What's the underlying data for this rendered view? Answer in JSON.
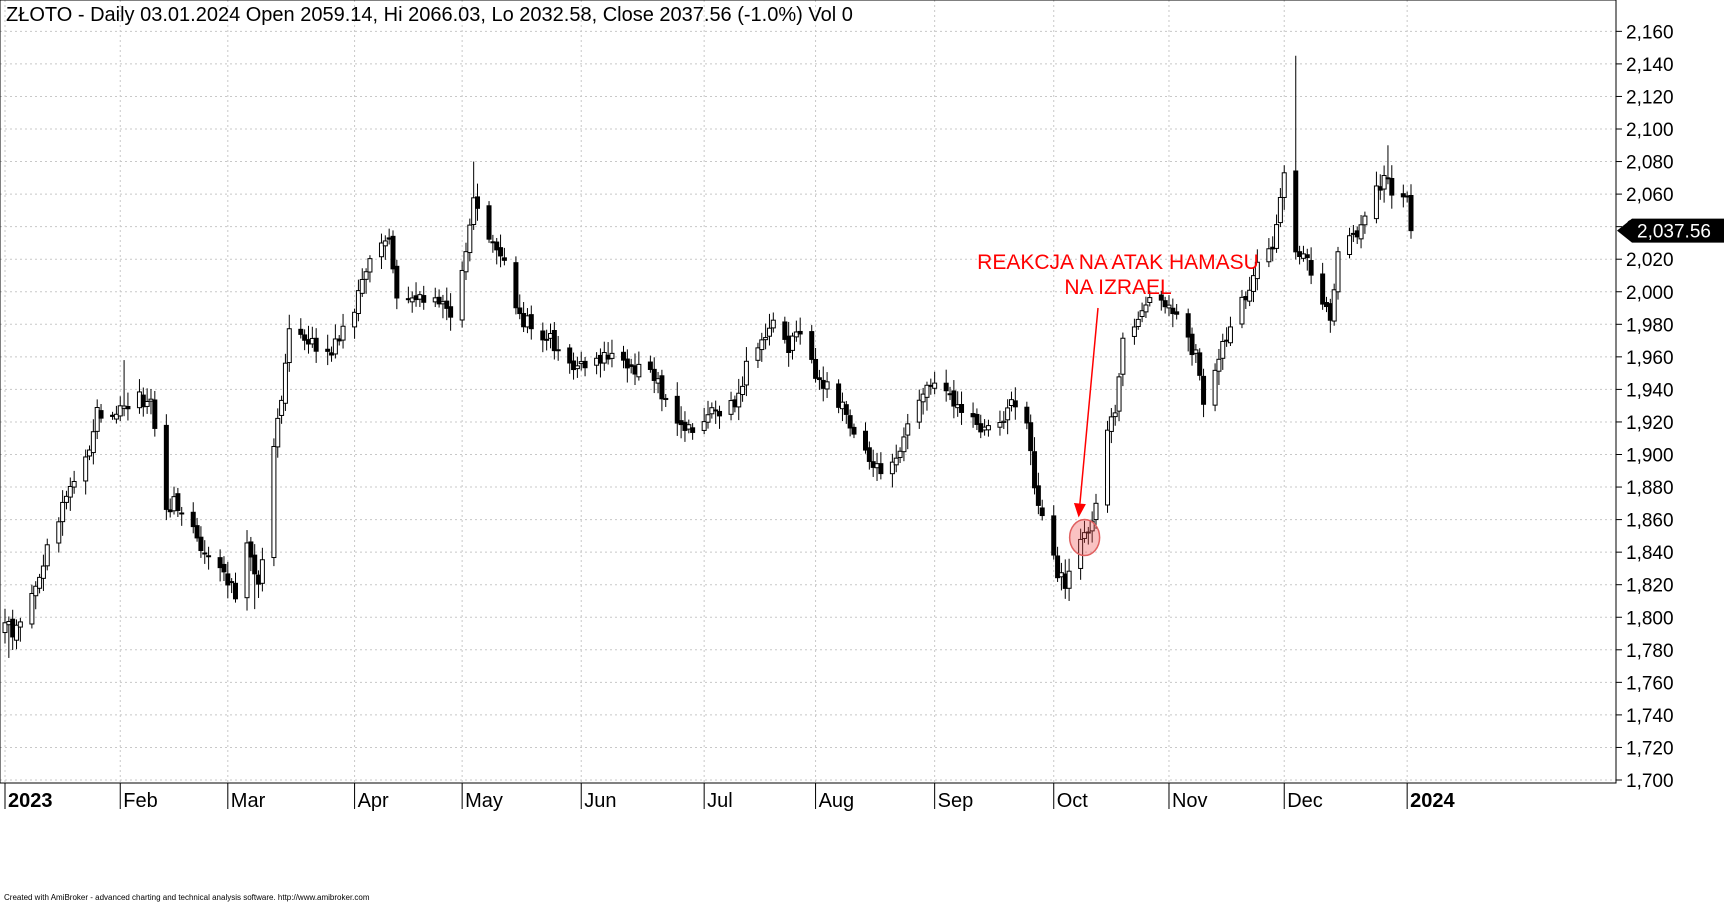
{
  "header": {
    "title": "ZŁOTO - Daily 03.01.2024 Open 2059.14, Hi 2066.03, Lo 2032.58, Close 2037.56 (-1.0%) Vol 0"
  },
  "footer": {
    "credit": "Created with AmiBroker - advanced charting and technical analysis software. http://www.amibroker.com"
  },
  "last_price_label": "2,037.56",
  "annotation": {
    "line1": "REAKCJA NA ATAK HAMASU",
    "line2": "NA IZRAEL",
    "color": "#ff0000",
    "date": "2023-10-09",
    "price": 1849
  },
  "chart_data": {
    "type": "candlestick",
    "title": "ZŁOTO - Daily 03.01.2024 Open 2059.14, Hi 2066.03, Lo 2032.58, Close 2037.56 (-1.0%) Vol 0",
    "x_range": [
      "2023-01-02",
      "2024-01-03"
    ],
    "ylim": [
      1700,
      2160
    ],
    "y_ticks": [
      1700,
      1720,
      1740,
      1760,
      1780,
      1800,
      1820,
      1840,
      1860,
      1880,
      1900,
      1920,
      1940,
      1960,
      1980,
      2000,
      2020,
      2040,
      2060,
      2080,
      2100,
      2120,
      2140,
      2160
    ],
    "y_tick_labels": [
      "1,700",
      "1,720",
      "1,740",
      "1,760",
      "1,780",
      "1,800",
      "1,820",
      "1,840",
      "1,860",
      "1,880",
      "1,900",
      "1,920",
      "1,940",
      "1,960",
      "1,980",
      "2,000",
      "2,020",
      "2,040",
      "2,060",
      "2,080",
      "2,100",
      "2,120",
      "2,140",
      "2,160"
    ],
    "x_ticks": [
      {
        "date": "2023-01-02",
        "label": "2023",
        "year": true
      },
      {
        "date": "2023-02-01",
        "label": "Feb",
        "year": false
      },
      {
        "date": "2023-03-01",
        "label": "Mar",
        "year": false
      },
      {
        "date": "2023-04-03",
        "label": "Apr",
        "year": false
      },
      {
        "date": "2023-05-01",
        "label": "May",
        "year": false
      },
      {
        "date": "2023-06-01",
        "label": "Jun",
        "year": false
      },
      {
        "date": "2023-07-03",
        "label": "Jul",
        "year": false
      },
      {
        "date": "2023-08-01",
        "label": "Aug",
        "year": false
      },
      {
        "date": "2023-09-01",
        "label": "Sep",
        "year": false
      },
      {
        "date": "2023-10-02",
        "label": "Oct",
        "year": false
      },
      {
        "date": "2023-11-01",
        "label": "Nov",
        "year": false
      },
      {
        "date": "2023-12-01",
        "label": "Dec",
        "year": false
      },
      {
        "date": "2024-01-02",
        "label": "2024",
        "year": true
      }
    ],
    "grid": true,
    "anchors": [
      [
        "2023-01-02",
        1800
      ],
      [
        "2023-01-04",
        1790
      ],
      [
        "2023-01-10",
        1815
      ],
      [
        "2023-01-13",
        1845
      ],
      [
        "2023-01-18",
        1875
      ],
      [
        "2023-01-24",
        1905
      ],
      [
        "2023-01-26",
        1927
      ],
      [
        "2023-02-01",
        1928
      ],
      [
        "2023-02-06",
        1935
      ],
      [
        "2023-02-09",
        1932
      ],
      [
        "2023-02-13",
        1868
      ],
      [
        "2023-02-15",
        1870
      ],
      [
        "2023-02-20",
        1855
      ],
      [
        "2023-02-23",
        1838
      ],
      [
        "2023-02-28",
        1825
      ],
      [
        "2023-03-03",
        1815
      ],
      [
        "2023-03-06",
        1850
      ],
      [
        "2023-03-09",
        1820
      ],
      [
        "2023-03-13",
        1900
      ],
      [
        "2023-03-17",
        1975
      ],
      [
        "2023-03-22",
        1970
      ],
      [
        "2023-03-27",
        1960
      ],
      [
        "2023-04-03",
        1990
      ],
      [
        "2023-04-06",
        2015
      ],
      [
        "2023-04-12",
        2030
      ],
      [
        "2023-04-14",
        2000
      ],
      [
        "2023-04-20",
        2000
      ],
      [
        "2023-04-26",
        1990
      ],
      [
        "2023-04-28",
        1988
      ],
      [
        "2023-05-02",
        2025
      ],
      [
        "2023-05-04",
        2055
      ],
      [
        "2023-05-08",
        2030
      ],
      [
        "2023-05-12",
        2020
      ],
      [
        "2023-05-16",
        1985
      ],
      [
        "2023-05-22",
        1975
      ],
      [
        "2023-05-26",
        1965
      ],
      [
        "2023-05-31",
        1955
      ],
      [
        "2023-06-05",
        1960
      ],
      [
        "2023-06-09",
        1960
      ],
      [
        "2023-06-14",
        1955
      ],
      [
        "2023-06-19",
        1950
      ],
      [
        "2023-06-23",
        1935
      ],
      [
        "2023-06-27",
        1920
      ],
      [
        "2023-06-30",
        1915
      ],
      [
        "2023-07-05",
        1925
      ],
      [
        "2023-07-07",
        1920
      ],
      [
        "2023-07-12",
        1935
      ],
      [
        "2023-07-14",
        1958
      ],
      [
        "2023-07-19",
        1975
      ],
      [
        "2023-07-21",
        1980
      ],
      [
        "2023-07-25",
        1965
      ],
      [
        "2023-07-27",
        1975
      ],
      [
        "2023-08-01",
        1950
      ],
      [
        "2023-08-04",
        1940
      ],
      [
        "2023-08-09",
        1925
      ],
      [
        "2023-08-14",
        1905
      ],
      [
        "2023-08-17",
        1890
      ],
      [
        "2023-08-22",
        1900
      ],
      [
        "2023-08-25",
        1915
      ],
      [
        "2023-08-30",
        1940
      ],
      [
        "2023-09-01",
        1945
      ],
      [
        "2023-09-06",
        1930
      ],
      [
        "2023-09-11",
        1920
      ],
      [
        "2023-09-14",
        1912
      ],
      [
        "2023-09-19",
        1925
      ],
      [
        "2023-09-21",
        1930
      ],
      [
        "2023-09-25",
        1918
      ],
      [
        "2023-09-27",
        1880
      ],
      [
        "2023-09-29",
        1860
      ],
      [
        "2023-10-03",
        1825
      ],
      [
        "2023-10-05",
        1820
      ],
      [
        "2023-10-09",
        1850
      ],
      [
        "2023-10-12",
        1860
      ],
      [
        "2023-10-16",
        1915
      ],
      [
        "2023-10-18",
        1930
      ],
      [
        "2023-10-20",
        1975
      ],
      [
        "2023-10-25",
        1985
      ],
      [
        "2023-10-27",
        2000
      ],
      [
        "2023-10-31",
        1990
      ],
      [
        "2023-11-03",
        1990
      ],
      [
        "2023-11-08",
        1960
      ],
      [
        "2023-11-10",
        1935
      ],
      [
        "2023-11-14",
        1960
      ],
      [
        "2023-11-17",
        1980
      ],
      [
        "2023-11-21",
        2000
      ],
      [
        "2023-11-24",
        2015
      ],
      [
        "2023-11-28",
        2030
      ],
      [
        "2023-12-01",
        2070
      ],
      [
        "2023-12-04",
        2025
      ],
      [
        "2023-12-07",
        2020
      ],
      [
        "2023-12-11",
        1990
      ],
      [
        "2023-12-13",
        1985
      ],
      [
        "2023-12-15",
        2025
      ],
      [
        "2023-12-20",
        2035
      ],
      [
        "2023-12-22",
        2050
      ],
      [
        "2023-12-27",
        2068
      ],
      [
        "2023-12-29",
        2063
      ],
      [
        "2024-01-02",
        2060
      ],
      [
        "2024-01-03",
        2037.56
      ]
    ],
    "notable_highs": [
      [
        "2023-02-02",
        1958
      ],
      [
        "2023-05-04",
        2080
      ],
      [
        "2023-12-04",
        2145
      ],
      [
        "2023-12-28",
        2090
      ]
    ],
    "notable_lows": [
      [
        "2023-01-03",
        1775
      ],
      [
        "2023-03-08",
        1805
      ],
      [
        "2023-10-06",
        1810
      ],
      [
        "2023-12-13",
        1975
      ]
    ],
    "last_bar": {
      "date": "2024-01-03",
      "open": 2059.14,
      "high": 2066.03,
      "low": 2032.58,
      "close": 2037.56
    }
  }
}
